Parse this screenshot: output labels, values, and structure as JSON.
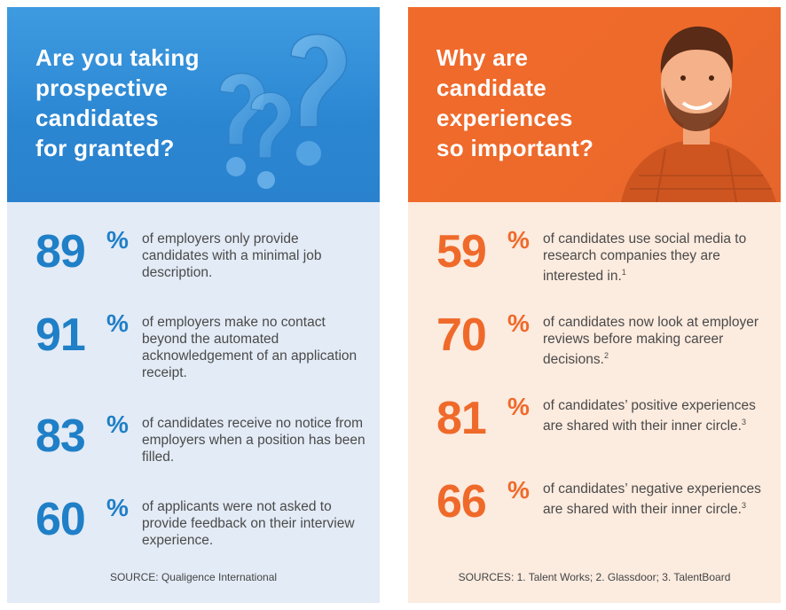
{
  "left": {
    "title": "Are you taking\nprospective\ncandidates\nfor granted?",
    "stats": [
      {
        "number": "89",
        "percent": "%",
        "text": "of employers only provide candidates with a minimal job description."
      },
      {
        "number": "91",
        "percent": "%",
        "text": "of employers make no contact beyond the automated acknowledgement of an application receipt."
      },
      {
        "number": "83",
        "percent": "%",
        "text": "of candidates receive no notice from employers when a position has been filled."
      },
      {
        "number": "60",
        "percent": "%",
        "text": "of applicants were not asked to provide feedback on their interview experience."
      }
    ],
    "source": "SOURCE: Qualigence International"
  },
  "right": {
    "title": "Why are\ncandidate\nexperiences\nso important?",
    "stats": [
      {
        "number": "59",
        "percent": "%",
        "text": "of candidates use social media to research companies they are interested in.",
        "ref": "1"
      },
      {
        "number": "70",
        "percent": "%",
        "text": "of candidates now look at employer reviews before making career decisions.",
        "ref": "2"
      },
      {
        "number": "81",
        "percent": "%",
        "text": "of candidates’ positive experiences are shared with their inner circle.",
        "ref": "3"
      },
      {
        "number": "66",
        "percent": "%",
        "text": "of candidates’ negative experiences are shared with their inner circle.",
        "ref": "3"
      }
    ],
    "source": "SOURCES: 1. Talent Works; 2. Glassdoor; 3. TalentBoard"
  },
  "colors": {
    "left_accent": "#1f7fc7",
    "right_accent": "#ef6a2a",
    "left_bg": "#e3ebf6",
    "right_bg": "#fcebdf"
  }
}
